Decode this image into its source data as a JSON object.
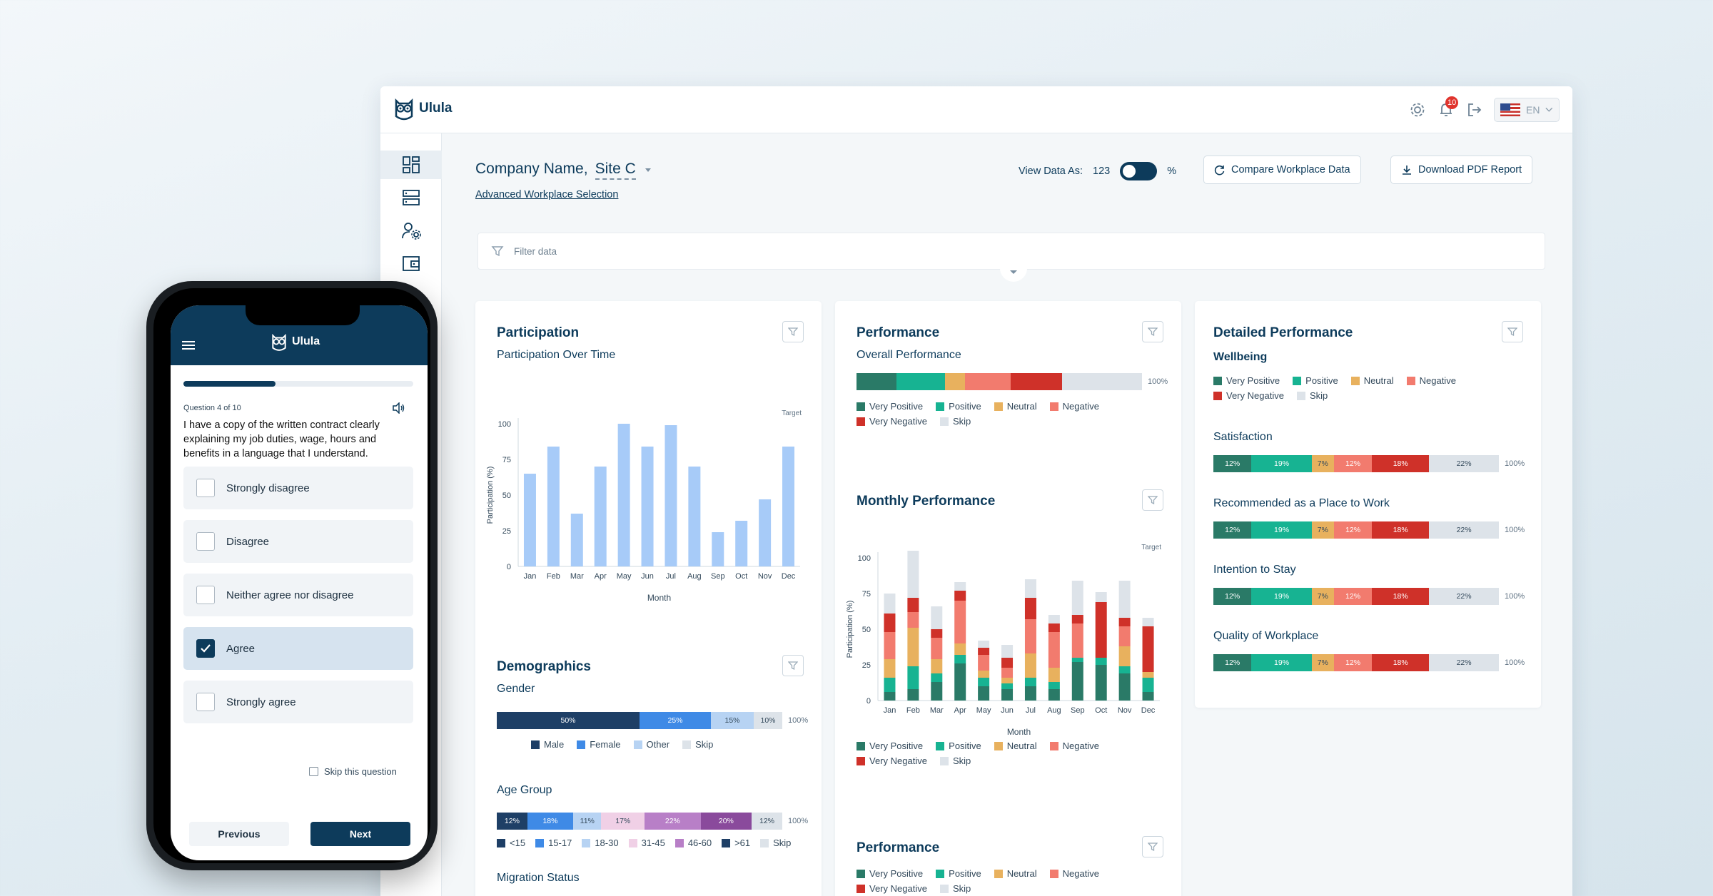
{
  "app": {
    "name": "Ulula"
  },
  "header": {
    "notification_count": "10",
    "language": "EN"
  },
  "toolbar": {
    "company_name": "Company Name,",
    "site": "Site C",
    "advanced_selection": "Advanced Workplace Selection",
    "view_as_label": "View Data As:",
    "view_as_count": "123",
    "view_as_percent": "%",
    "compare_button": "Compare Workplace Data",
    "download_button": "Download PDF Report"
  },
  "filter": {
    "placeholder": "Filter data"
  },
  "colors": {
    "very_positive": "#2a7a67",
    "positive": "#17b392",
    "neutral": "#e8b15e",
    "negative": "#f27b6e",
    "very_negative": "#cf3129",
    "skip": "#dde3e9",
    "brand": "#0d3b5b"
  },
  "participation": {
    "title": "Participation",
    "subtitle": "Participation Over Time"
  },
  "demographics": {
    "title": "Demographics",
    "gender_label": "Gender",
    "age_label": "Age Group",
    "migration_label": "Migration Status",
    "gender_legend": [
      "Male",
      "Female",
      "Other",
      "Skip"
    ],
    "age_legend": [
      "<15",
      "15-17",
      "18-30",
      "31-45",
      "46-60",
      ">61",
      "Skip"
    ]
  },
  "performance": {
    "title": "Performance",
    "overall_label": "Overall Performance",
    "monthly_title": "Monthly Performance",
    "bottom_title": "Performance",
    "legend": [
      "Very Positive",
      "Positive",
      "Neutral",
      "Negative",
      "Very Negative",
      "Skip"
    ],
    "total": "100%"
  },
  "detailed": {
    "title": "Detailed Performance",
    "section": "Wellbeing",
    "items": [
      {
        "label": "Satisfaction",
        "values": [
          12,
          19,
          7,
          12,
          18,
          22
        ]
      },
      {
        "label": "Recommended as a Place to Work",
        "values": [
          12,
          19,
          7,
          12,
          18,
          22
        ]
      },
      {
        "label": "Intention to Stay",
        "values": [
          12,
          19,
          7,
          12,
          18,
          22
        ]
      },
      {
        "label": "Quality of Workplace",
        "values": [
          12,
          19,
          7,
          12,
          18,
          22
        ]
      }
    ]
  },
  "chart_data": [
    {
      "type": "bar",
      "title": "Participation Over Time",
      "categories": [
        "Jan",
        "Feb",
        "Mar",
        "Apr",
        "May",
        "Jun",
        "Jul",
        "Aug",
        "Sep",
        "Oct",
        "Nov",
        "Dec"
      ],
      "values": [
        65,
        84,
        37,
        70,
        100,
        84,
        99,
        70,
        24,
        32,
        47,
        84
      ],
      "xlabel": "Month",
      "ylabel": "Participation (%)",
      "ylim": [
        0,
        100
      ],
      "yticks": [
        "0",
        "25",
        "50",
        "75",
        "100"
      ],
      "annotation": "Target"
    },
    {
      "type": "bar",
      "title": "Monthly Performance",
      "stacked": true,
      "categories": [
        "Jan",
        "Feb",
        "Mar",
        "Apr",
        "May",
        "Jun",
        "Jul",
        "Aug",
        "Sep",
        "Oct",
        "Nov",
        "Dec"
      ],
      "xlabel": "Month",
      "ylabel": "Participation (%)",
      "ylim": [
        0,
        100
      ],
      "yticks": [
        "0",
        "25",
        "50",
        "75",
        "100"
      ],
      "annotation": "Target",
      "series": [
        {
          "name": "Very Positive",
          "values": [
            6,
            8,
            13,
            26,
            10,
            8,
            10,
            8,
            27,
            25,
            19,
            6
          ]
        },
        {
          "name": "Positive",
          "values": [
            10,
            16,
            6,
            6,
            6,
            4,
            6,
            5,
            3,
            5,
            5,
            10
          ]
        },
        {
          "name": "Neutral",
          "values": [
            13,
            27,
            10,
            8,
            5,
            4,
            17,
            10,
            0,
            0,
            14,
            4
          ]
        },
        {
          "name": "Negative",
          "values": [
            19,
            11,
            15,
            30,
            11,
            7,
            24,
            25,
            24,
            0,
            14,
            0
          ]
        },
        {
          "name": "Very Negative",
          "values": [
            13,
            10,
            6,
            7,
            5,
            7,
            15,
            6,
            6,
            39,
            6,
            32
          ]
        },
        {
          "name": "Skip",
          "values": [
            14,
            33,
            16,
            6,
            5,
            9,
            13,
            6,
            24,
            7,
            26,
            6
          ]
        }
      ]
    },
    {
      "type": "bar",
      "title": "Overall Performance",
      "stacked": true,
      "orientation": "horizontal",
      "series_names": [
        "Very Positive",
        "Positive",
        "Neutral",
        "Negative",
        "Very Negative",
        "Skip"
      ],
      "values": [
        14,
        17,
        7,
        16,
        18,
        28
      ]
    },
    {
      "type": "bar",
      "title": "Gender",
      "stacked": true,
      "orientation": "horizontal",
      "series_names": [
        "Male",
        "Female",
        "Other",
        "Skip"
      ],
      "values": [
        50,
        25,
        15,
        10
      ],
      "labels": [
        "50%",
        "25%",
        "15%",
        "10%"
      ]
    },
    {
      "type": "bar",
      "title": "Age Group",
      "stacked": true,
      "orientation": "horizontal",
      "series_names": [
        "<15",
        "15-17",
        "18-30",
        "31-45",
        "46-60",
        ">61",
        "Skip"
      ],
      "values": [
        12,
        18,
        11,
        17,
        22,
        20,
        12
      ],
      "labels": [
        "12%",
        "18%",
        "11%",
        "17%",
        "22%",
        "20%",
        "12%"
      ]
    }
  ],
  "survey": {
    "question_number": "Question 4 of 10",
    "question": "I have a copy of the written contract clearly explaining my job duties, wage, hours and benefits in a language that I understand.",
    "progress": 0.4,
    "options": [
      "Strongly disagree",
      "Disagree",
      "Neither agree nor disagree",
      "Agree",
      "Strongly agree"
    ],
    "selected": "Agree",
    "skip_label": "Skip this question",
    "previous": "Previous",
    "next": "Next",
    "brand": "Ulula"
  }
}
